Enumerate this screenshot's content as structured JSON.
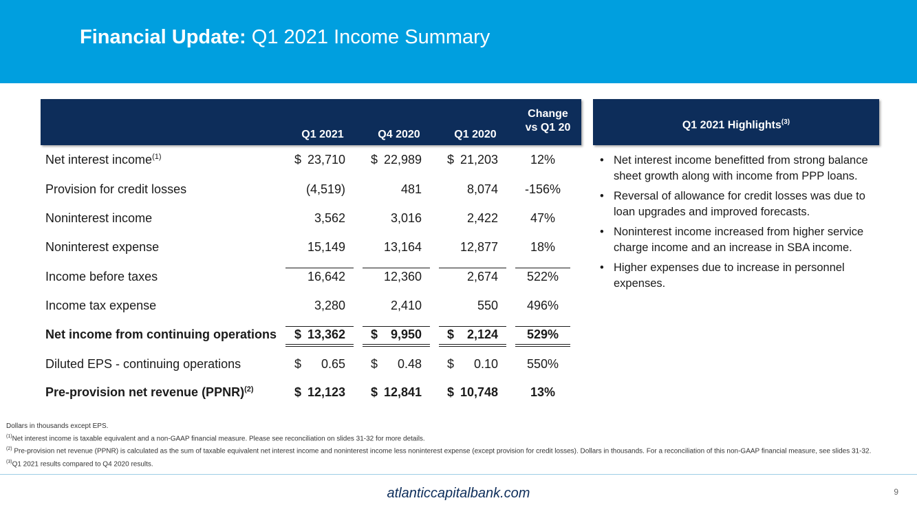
{
  "title": {
    "bold": "Financial Update:",
    "rest": " Q1 2021 Income Summary"
  },
  "table": {
    "headers": {
      "c1": "Q1 2021",
      "c2": "Q4 2020",
      "c3": "Q1 2020",
      "c4_line1": "Change",
      "c4_line2": "vs Q1 20"
    },
    "rows": [
      {
        "label": "Net interest income",
        "sup": "(1)",
        "d1": "$",
        "v1": "23,710",
        "d2": "$",
        "v2": "22,989",
        "d3": "$",
        "v3": "21,203",
        "chg": "12%"
      },
      {
        "label": "Provision for credit losses",
        "sup": "",
        "d1": "",
        "v1": "(4,519)",
        "d2": "",
        "v2": "481",
        "d3": "",
        "v3": "8,074",
        "chg": "-156%"
      },
      {
        "label": "Noninterest income",
        "sup": "",
        "d1": "",
        "v1": "3,562",
        "d2": "",
        "v2": "3,016",
        "d3": "",
        "v3": "2,422",
        "chg": "47%"
      },
      {
        "label": "Noninterest expense",
        "sup": "",
        "d1": "",
        "v1": "15,149",
        "d2": "",
        "v2": "13,164",
        "d3": "",
        "v3": "12,877",
        "chg": "18%"
      },
      {
        "label": "Income before taxes",
        "sup": "",
        "d1": "",
        "v1": "16,642",
        "d2": "",
        "v2": "12,360",
        "d3": "",
        "v3": "2,674",
        "chg": "522%"
      },
      {
        "label": "Income tax expense",
        "sup": "",
        "d1": "",
        "v1": "3,280",
        "d2": "",
        "v2": "2,410",
        "d3": "",
        "v3": "550",
        "chg": "496%"
      },
      {
        "label": "Net income from continuing operations",
        "sup": "",
        "d1": "$",
        "v1": "13,362",
        "d2": "$",
        "v2": "9,950",
        "d3": "$",
        "v3": "2,124",
        "chg": "529%"
      },
      {
        "label": "Diluted EPS - continuing operations",
        "sup": "",
        "d1": "$",
        "v1": "0.65",
        "d2": "$",
        "v2": "0.48",
        "d3": "$",
        "v3": "0.10",
        "chg": "550%"
      },
      {
        "label": "Pre-provision net revenue (PPNR)",
        "sup": "(2)",
        "d1": "$",
        "v1": "12,123",
        "d2": "$",
        "v2": "12,841",
        "d3": "$",
        "v3": "10,748",
        "chg": "13%"
      }
    ]
  },
  "highlights": {
    "title": "Q1 2021 Highlights",
    "sup": "(3)",
    "bullet_char": "•",
    "items": [
      "Net interest income benefitted from strong balance sheet growth along with income from PPP loans.",
      "Reversal of allowance for credit losses was due to loan upgrades and improved forecasts.",
      "Noninterest income increased from higher service charge income and an increase in SBA income.",
      "Higher expenses due to increase in personnel expenses."
    ]
  },
  "notes": {
    "n0": "Dollars in thousands except EPS.",
    "n1_sup": "(1)",
    "n1": "Net interest income is taxable equivalent and a non-GAAP financial measure.  Please see reconciliation on slides 31-32 for more details.",
    "n2_sup": "(2)",
    "n2": " Pre-provision net revenue (PPNR) is calculated as the sum of taxable equivalent net interest income and noninterest income less noninterest expense (except provision for credit losses). Dollars in thousands. For a reconciliation of this non-GAAP financial measure, see slides 31-32.",
    "n3_sup": "(3)",
    "n3": "Q1 2021 results compared to Q4 2020 results."
  },
  "footer": {
    "url": "atlanticcapitalbank.com",
    "page": "9"
  }
}
